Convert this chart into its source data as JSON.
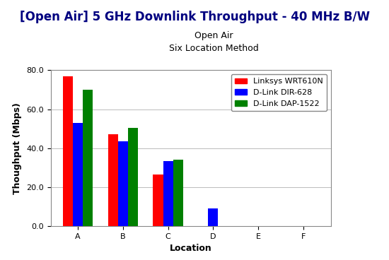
{
  "title": "[Open Air] 5 GHz Downlink Throughput - 40 MHz B/W",
  "subtitle1": "Open Air",
  "subtitle2": "Six Location Method",
  "xlabel": "Location",
  "ylabel": "Thoughput (Mbps)",
  "categories": [
    "A",
    "B",
    "C",
    "D",
    "E",
    "F"
  ],
  "series": [
    {
      "label": "Linksys WRT610N",
      "color": "#FF0000",
      "values": [
        77.0,
        47.0,
        26.5,
        0.0,
        0.0,
        0.0
      ]
    },
    {
      "label": "D-Link DIR-628",
      "color": "#0000FF",
      "values": [
        53.0,
        43.5,
        33.5,
        9.0,
        0.0,
        0.0
      ]
    },
    {
      "label": "D-Link DAP-1522",
      "color": "#008000",
      "values": [
        70.0,
        50.5,
        34.0,
        0.0,
        0.0,
        0.0
      ]
    }
  ],
  "ylim": [
    0,
    80
  ],
  "yticks": [
    0.0,
    20.0,
    40.0,
    60.0,
    80.0
  ],
  "background_color": "#FFFFFF",
  "plot_bg_color": "#FFFFFF",
  "grid_color": "#BBBBBB",
  "title_color": "#000080",
  "bar_width": 0.22,
  "legend_fontsize": 8,
  "title_fontsize": 12,
  "subtitle_fontsize": 9,
  "axis_label_fontsize": 9,
  "tick_fontsize": 8
}
